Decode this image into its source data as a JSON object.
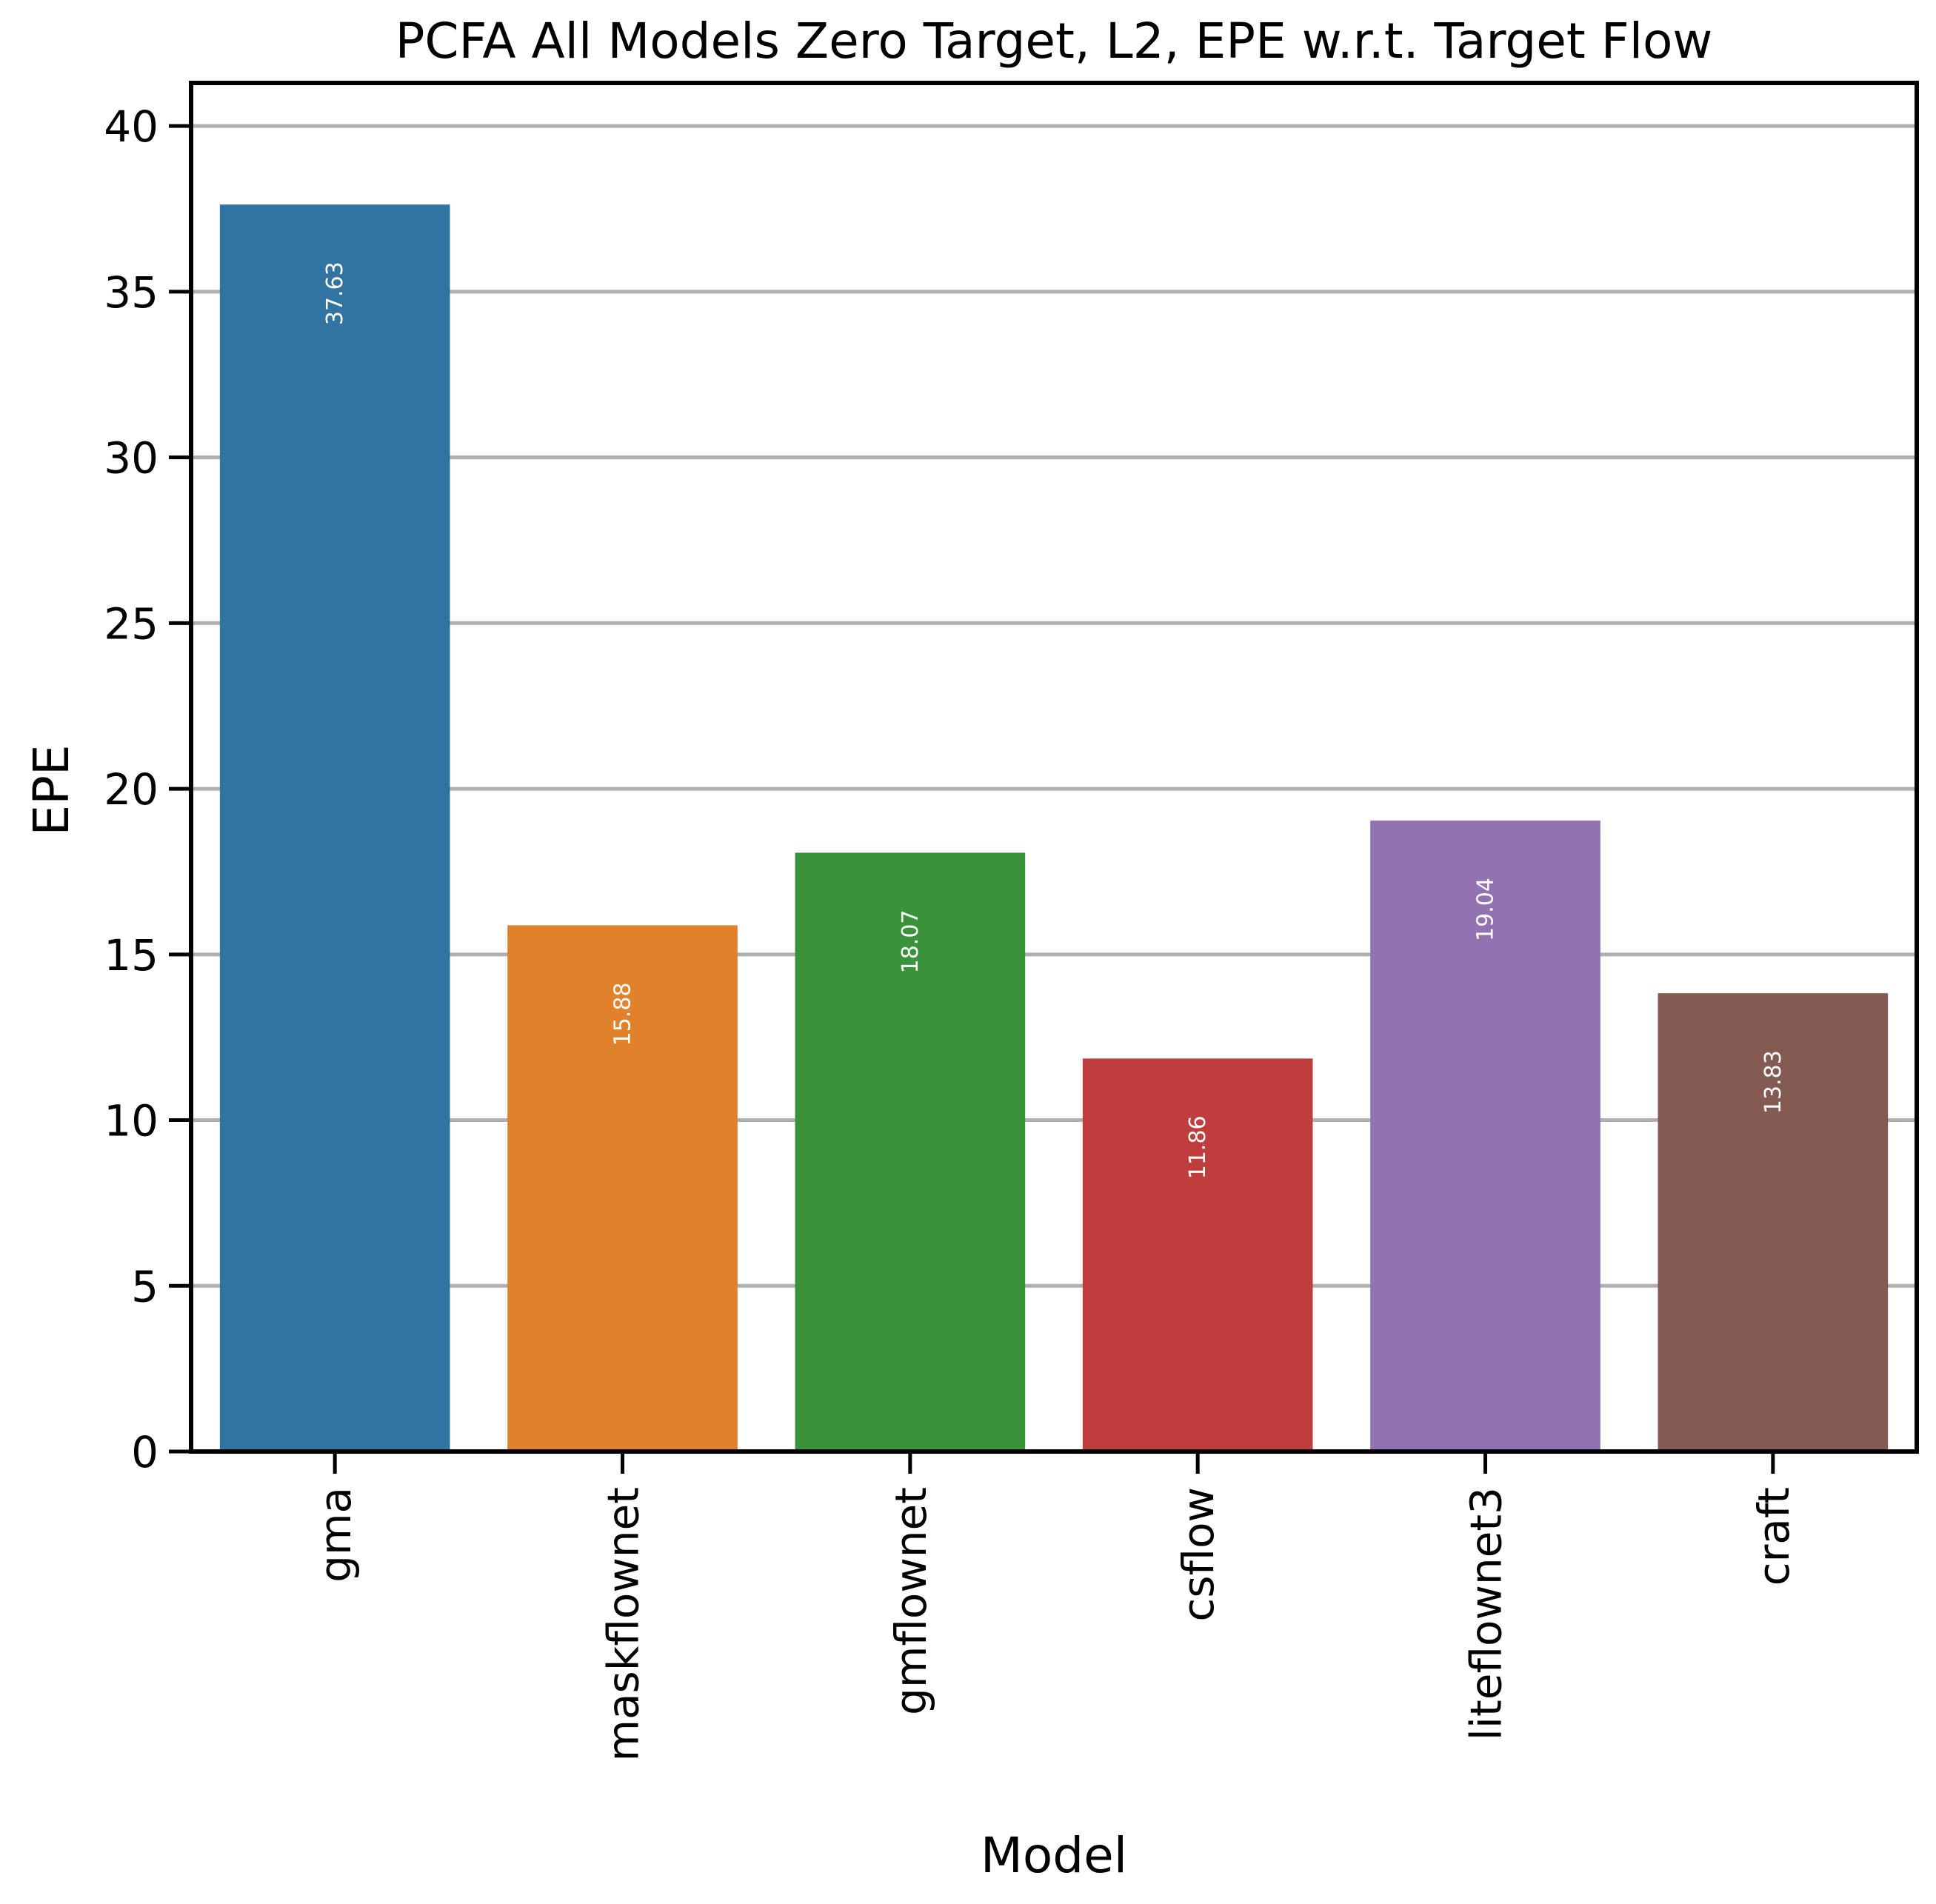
{
  "chart_data": {
    "type": "bar",
    "title": "PCFA All Models Zero Target, L2, EPE w.r.t. Target Flow",
    "xlabel": "Model",
    "ylabel": "EPE",
    "categories": [
      "gma",
      "maskflownet",
      "gmflownet",
      "csflow",
      "liteflownet3",
      "craft"
    ],
    "values": [
      37.63,
      15.88,
      18.07,
      11.86,
      19.04,
      13.83
    ],
    "value_labels": [
      "37.63",
      "15.88",
      "18.07",
      "11.86",
      "19.04",
      "13.83"
    ],
    "colors": [
      "#3274a1",
      "#e1812c",
      "#3a923a",
      "#c03d3e",
      "#9372b2",
      "#845b53"
    ],
    "ylim": [
      0,
      41.3
    ],
    "yticks": [
      0,
      5,
      10,
      15,
      20,
      25,
      30,
      35,
      40
    ],
    "ytick_labels": [
      "0",
      "5",
      "10",
      "15",
      "20",
      "25",
      "30",
      "35",
      "40"
    ],
    "grid": "y",
    "legend": "none",
    "x_tick_rotation": "vertical"
  }
}
